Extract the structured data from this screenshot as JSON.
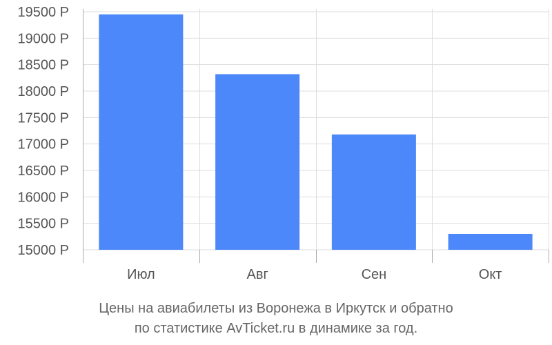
{
  "chart_data": {
    "type": "bar",
    "categories": [
      "Июл",
      "Авг",
      "Сен",
      "Окт"
    ],
    "values": [
      19450,
      18320,
      17180,
      15300
    ],
    "ylim": [
      15000,
      19500
    ],
    "yticks": [
      15000,
      15500,
      16000,
      16500,
      17000,
      17500,
      18000,
      18500,
      19000,
      19500
    ],
    "ytick_suffix": " Р",
    "grid": true,
    "bar_color": "#4d88fa",
    "grid_color": "#dddddd",
    "axis_color": "#aaaaaa"
  },
  "caption": {
    "line1": "Цены на авиабилеты из Воронежа в Иркутск и обратно",
    "line2": "по статистике AvTicket.ru в динамике за год."
  }
}
